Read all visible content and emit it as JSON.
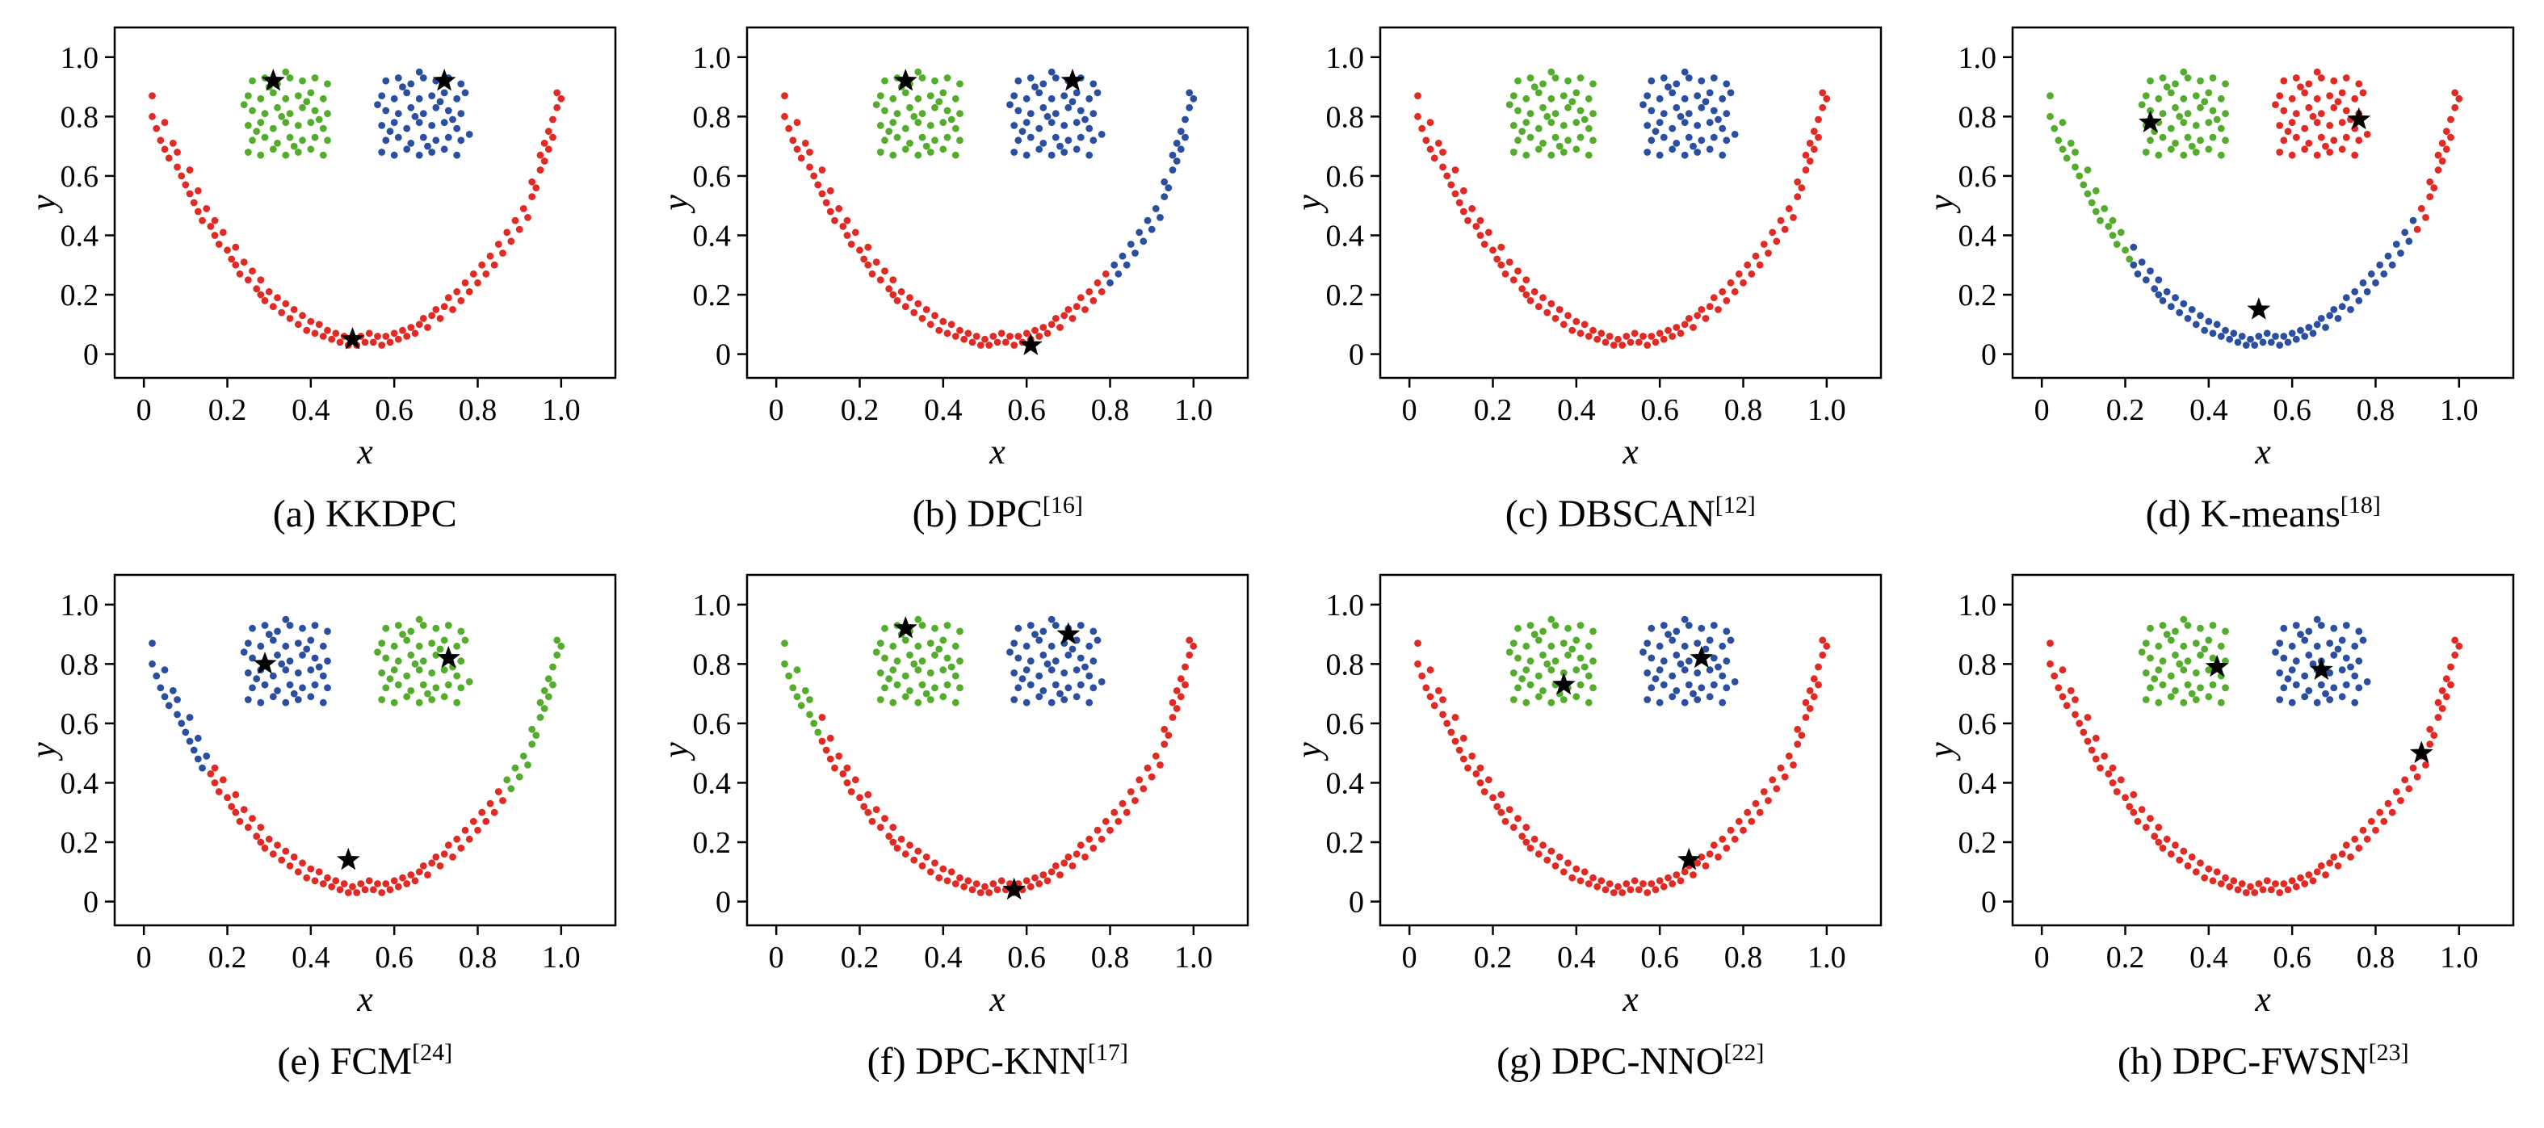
{
  "chart_data": {
    "type": "scatter",
    "layout": "2x4 grid of subplots sharing one smiley-face dataset (U-shaped arc plus two rectangular clusters), colored by clustering result; black stars mark cluster centers",
    "x_label": "x",
    "y_label": "y",
    "tick_values": [
      0,
      0.2,
      0.4,
      0.6,
      0.8,
      1.0
    ],
    "tick_labels": [
      "0",
      "0.2",
      "0.4",
      "0.6",
      "0.8",
      "1.0"
    ],
    "x_range": [
      -0.07,
      1.13
    ],
    "y_range": [
      -0.08,
      1.1
    ],
    "grid": "off",
    "palette": {
      "red": "#e02a23",
      "green": "#53ac2b",
      "blue": "#2b4fa0",
      "star": "#000000"
    },
    "point_groups": {
      "smile": [
        [
          0.02,
          0.87
        ],
        [
          0.02,
          0.8
        ],
        [
          0.03,
          0.76
        ],
        [
          0.04,
          0.72
        ],
        [
          0.05,
          0.78
        ],
        [
          0.05,
          0.69
        ],
        [
          0.06,
          0.66
        ],
        [
          0.07,
          0.71
        ],
        [
          0.08,
          0.63
        ],
        [
          0.08,
          0.68
        ],
        [
          0.09,
          0.6
        ],
        [
          0.1,
          0.57
        ],
        [
          0.11,
          0.62
        ],
        [
          0.11,
          0.54
        ],
        [
          0.12,
          0.51
        ],
        [
          0.13,
          0.55
        ],
        [
          0.13,
          0.48
        ],
        [
          0.14,
          0.45
        ],
        [
          0.15,
          0.49
        ],
        [
          0.16,
          0.43
        ],
        [
          0.17,
          0.4
        ],
        [
          0.17,
          0.45
        ],
        [
          0.18,
          0.37
        ],
        [
          0.19,
          0.41
        ],
        [
          0.2,
          0.35
        ],
        [
          0.21,
          0.32
        ],
        [
          0.22,
          0.36
        ],
        [
          0.22,
          0.3
        ],
        [
          0.23,
          0.27
        ],
        [
          0.24,
          0.31
        ],
        [
          0.25,
          0.25
        ],
        [
          0.26,
          0.28
        ],
        [
          0.27,
          0.22
        ],
        [
          0.28,
          0.25
        ],
        [
          0.28,
          0.2
        ],
        [
          0.29,
          0.18
        ],
        [
          0.3,
          0.21
        ],
        [
          0.31,
          0.16
        ],
        [
          0.32,
          0.19
        ],
        [
          0.33,
          0.14
        ],
        [
          0.34,
          0.17
        ],
        [
          0.35,
          0.12
        ],
        [
          0.36,
          0.15
        ],
        [
          0.37,
          0.1
        ],
        [
          0.38,
          0.13
        ],
        [
          0.39,
          0.08
        ],
        [
          0.4,
          0.11
        ],
        [
          0.41,
          0.07
        ],
        [
          0.42,
          0.1
        ],
        [
          0.43,
          0.06
        ],
        [
          0.44,
          0.08
        ],
        [
          0.45,
          0.05
        ],
        [
          0.46,
          0.07
        ],
        [
          0.47,
          0.04
        ],
        [
          0.48,
          0.06
        ],
        [
          0.49,
          0.03
        ],
        [
          0.5,
          0.05
        ],
        [
          0.51,
          0.03
        ],
        [
          0.52,
          0.06
        ],
        [
          0.53,
          0.04
        ],
        [
          0.54,
          0.07
        ],
        [
          0.55,
          0.04
        ],
        [
          0.56,
          0.06
        ],
        [
          0.57,
          0.03
        ],
        [
          0.58,
          0.06
        ],
        [
          0.59,
          0.04
        ],
        [
          0.6,
          0.07
        ],
        [
          0.61,
          0.05
        ],
        [
          0.62,
          0.08
        ],
        [
          0.63,
          0.06
        ],
        [
          0.64,
          0.09
        ],
        [
          0.65,
          0.07
        ],
        [
          0.66,
          0.1
        ],
        [
          0.67,
          0.12
        ],
        [
          0.68,
          0.09
        ],
        [
          0.69,
          0.13
        ],
        [
          0.7,
          0.15
        ],
        [
          0.71,
          0.12
        ],
        [
          0.72,
          0.16
        ],
        [
          0.73,
          0.19
        ],
        [
          0.74,
          0.15
        ],
        [
          0.75,
          0.21
        ],
        [
          0.76,
          0.18
        ],
        [
          0.77,
          0.24
        ],
        [
          0.78,
          0.21
        ],
        [
          0.79,
          0.27
        ],
        [
          0.8,
          0.24
        ],
        [
          0.81,
          0.3
        ],
        [
          0.82,
          0.27
        ],
        [
          0.83,
          0.33
        ],
        [
          0.84,
          0.3
        ],
        [
          0.85,
          0.37
        ],
        [
          0.86,
          0.34
        ],
        [
          0.87,
          0.41
        ],
        [
          0.88,
          0.38
        ],
        [
          0.89,
          0.45
        ],
        [
          0.9,
          0.42
        ],
        [
          0.91,
          0.49
        ],
        [
          0.92,
          0.46
        ],
        [
          0.93,
          0.53
        ],
        [
          0.93,
          0.58
        ],
        [
          0.94,
          0.56
        ],
        [
          0.95,
          0.62
        ],
        [
          0.95,
          0.67
        ],
        [
          0.96,
          0.65
        ],
        [
          0.96,
          0.71
        ],
        [
          0.97,
          0.69
        ],
        [
          0.97,
          0.75
        ],
        [
          0.98,
          0.79
        ],
        [
          0.98,
          0.73
        ],
        [
          0.99,
          0.83
        ],
        [
          0.99,
          0.88
        ],
        [
          1.0,
          0.86
        ]
      ],
      "eye_left": [
        [
          0.25,
          0.68
        ],
        [
          0.28,
          0.67
        ],
        [
          0.31,
          0.69
        ],
        [
          0.34,
          0.67
        ],
        [
          0.37,
          0.68
        ],
        [
          0.4,
          0.69
        ],
        [
          0.43,
          0.67
        ],
        [
          0.26,
          0.72
        ],
        [
          0.29,
          0.73
        ],
        [
          0.32,
          0.71
        ],
        [
          0.35,
          0.73
        ],
        [
          0.38,
          0.72
        ],
        [
          0.41,
          0.73
        ],
        [
          0.44,
          0.72
        ],
        [
          0.25,
          0.77
        ],
        [
          0.28,
          0.78
        ],
        [
          0.31,
          0.76
        ],
        [
          0.34,
          0.78
        ],
        [
          0.37,
          0.77
        ],
        [
          0.4,
          0.78
        ],
        [
          0.43,
          0.76
        ],
        [
          0.26,
          0.82
        ],
        [
          0.29,
          0.81
        ],
        [
          0.32,
          0.83
        ],
        [
          0.35,
          0.81
        ],
        [
          0.38,
          0.83
        ],
        [
          0.41,
          0.82
        ],
        [
          0.44,
          0.81
        ],
        [
          0.25,
          0.87
        ],
        [
          0.28,
          0.86
        ],
        [
          0.31,
          0.88
        ],
        [
          0.34,
          0.86
        ],
        [
          0.37,
          0.87
        ],
        [
          0.4,
          0.88
        ],
        [
          0.43,
          0.86
        ],
        [
          0.26,
          0.92
        ],
        [
          0.29,
          0.93
        ],
        [
          0.32,
          0.91
        ],
        [
          0.35,
          0.93
        ],
        [
          0.38,
          0.92
        ],
        [
          0.41,
          0.93
        ],
        [
          0.44,
          0.91
        ],
        [
          0.27,
          0.75
        ],
        [
          0.33,
          0.8
        ],
        [
          0.39,
          0.85
        ],
        [
          0.3,
          0.9
        ],
        [
          0.36,
          0.7
        ],
        [
          0.42,
          0.79
        ],
        [
          0.24,
          0.84
        ],
        [
          0.34,
          0.95
        ]
      ],
      "eye_right": [
        [
          0.57,
          0.68
        ],
        [
          0.6,
          0.67
        ],
        [
          0.63,
          0.69
        ],
        [
          0.66,
          0.67
        ],
        [
          0.69,
          0.68
        ],
        [
          0.72,
          0.69
        ],
        [
          0.75,
          0.67
        ],
        [
          0.58,
          0.72
        ],
        [
          0.61,
          0.73
        ],
        [
          0.64,
          0.71
        ],
        [
          0.67,
          0.73
        ],
        [
          0.7,
          0.72
        ],
        [
          0.73,
          0.73
        ],
        [
          0.76,
          0.72
        ],
        [
          0.57,
          0.77
        ],
        [
          0.6,
          0.78
        ],
        [
          0.63,
          0.76
        ],
        [
          0.66,
          0.78
        ],
        [
          0.69,
          0.77
        ],
        [
          0.72,
          0.78
        ],
        [
          0.75,
          0.76
        ],
        [
          0.58,
          0.82
        ],
        [
          0.61,
          0.81
        ],
        [
          0.64,
          0.83
        ],
        [
          0.67,
          0.81
        ],
        [
          0.7,
          0.83
        ],
        [
          0.73,
          0.82
        ],
        [
          0.76,
          0.81
        ],
        [
          0.57,
          0.87
        ],
        [
          0.6,
          0.86
        ],
        [
          0.63,
          0.88
        ],
        [
          0.66,
          0.86
        ],
        [
          0.69,
          0.87
        ],
        [
          0.72,
          0.88
        ],
        [
          0.75,
          0.86
        ],
        [
          0.58,
          0.92
        ],
        [
          0.61,
          0.93
        ],
        [
          0.64,
          0.91
        ],
        [
          0.67,
          0.93
        ],
        [
          0.7,
          0.92
        ],
        [
          0.73,
          0.93
        ],
        [
          0.76,
          0.91
        ],
        [
          0.59,
          0.75
        ],
        [
          0.65,
          0.8
        ],
        [
          0.71,
          0.85
        ],
        [
          0.62,
          0.9
        ],
        [
          0.68,
          0.7
        ],
        [
          0.74,
          0.79
        ],
        [
          0.56,
          0.84
        ],
        [
          0.66,
          0.95
        ],
        [
          0.77,
          0.88
        ],
        [
          0.78,
          0.74
        ]
      ]
    },
    "panels": [
      {
        "id": "a",
        "caption": "(a) KKDPC",
        "sup": "",
        "colors": {
          "smile": "red",
          "eye_left": "green",
          "eye_right": "blue"
        },
        "overrides": [],
        "stars": [
          [
            0.31,
            0.92
          ],
          [
            0.72,
            0.92
          ],
          [
            0.5,
            0.05
          ]
        ]
      },
      {
        "id": "b",
        "caption": "(b) DPC",
        "sup": "[16]",
        "colors": {
          "smile": "red",
          "eye_left": "green",
          "eye_right": "blue"
        },
        "overrides": [
          {
            "group": "smile",
            "min_x": 0.8,
            "color": "blue"
          }
        ],
        "stars": [
          [
            0.31,
            0.92
          ],
          [
            0.71,
            0.92
          ],
          [
            0.61,
            0.03
          ]
        ]
      },
      {
        "id": "c",
        "caption": "(c) DBSCAN",
        "sup": "[12]",
        "colors": {
          "smile": "red",
          "eye_left": "green",
          "eye_right": "blue"
        },
        "overrides": [],
        "stars": []
      },
      {
        "id": "d",
        "caption": "(d) K-means",
        "sup": "[18]",
        "colors": {
          "smile": "blue",
          "eye_left": "green",
          "eye_right": "red"
        },
        "overrides": [
          {
            "group": "smile",
            "max_x": 0.21,
            "color": "green"
          },
          {
            "group": "smile",
            "min_x": 0.9,
            "color": "red"
          }
        ],
        "stars": [
          [
            0.26,
            0.78
          ],
          [
            0.76,
            0.79
          ],
          [
            0.52,
            0.15
          ]
        ]
      },
      {
        "id": "e",
        "caption": "(e) FCM",
        "sup": "[24]",
        "colors": {
          "smile": "red",
          "eye_left": "blue",
          "eye_right": "green"
        },
        "overrides": [
          {
            "group": "smile",
            "max_x": 0.15,
            "color": "blue"
          },
          {
            "group": "smile",
            "min_x": 0.87,
            "color": "green"
          }
        ],
        "stars": [
          [
            0.29,
            0.8
          ],
          [
            0.73,
            0.82
          ],
          [
            0.49,
            0.14
          ]
        ]
      },
      {
        "id": "f",
        "caption": "(f) DPC-KNN",
        "sup": "[17]",
        "colors": {
          "smile": "red",
          "eye_left": "green",
          "eye_right": "blue"
        },
        "overrides": [
          {
            "group": "smile",
            "max_x": 0.1,
            "color": "green"
          }
        ],
        "stars": [
          [
            0.31,
            0.92
          ],
          [
            0.7,
            0.9
          ],
          [
            0.57,
            0.04
          ]
        ]
      },
      {
        "id": "g",
        "caption": "(g) DPC-NNO",
        "sup": "[22]",
        "colors": {
          "smile": "red",
          "eye_left": "green",
          "eye_right": "blue"
        },
        "overrides": [],
        "stars": [
          [
            0.37,
            0.73
          ],
          [
            0.7,
            0.82
          ],
          [
            0.67,
            0.14
          ]
        ]
      },
      {
        "id": "h",
        "caption": "(h) DPC-FWSN",
        "sup": "[23]",
        "colors": {
          "smile": "red",
          "eye_left": "green",
          "eye_right": "blue"
        },
        "overrides": [],
        "stars": [
          [
            0.42,
            0.79
          ],
          [
            0.67,
            0.78
          ],
          [
            0.91,
            0.5
          ]
        ]
      }
    ]
  }
}
